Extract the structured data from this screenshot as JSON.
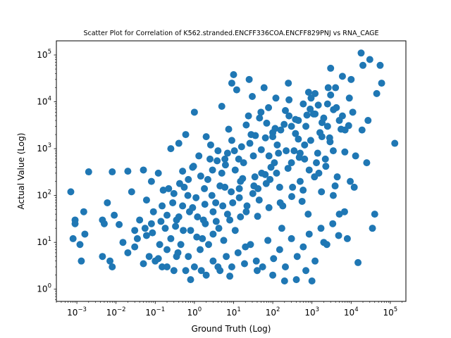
{
  "chart_data": {
    "type": "scatter",
    "title": "Scatter Plot for Correlation of K562.stranded.ENCFF336COA.ENCFF829PNJ vs RNA_CAGE",
    "xlabel": "Ground Truth (Log)",
    "ylabel": "Actual Value (Log)",
    "xscale": "log",
    "yscale": "log",
    "xlim": [
      0.0003,
      250000
    ],
    "ylim": [
      0.55,
      200000
    ],
    "x_ticks": [
      {
        "base": "10",
        "exp": "−3",
        "value": 0.001
      },
      {
        "base": "10",
        "exp": "−2",
        "value": 0.01
      },
      {
        "base": "10",
        "exp": "−1",
        "value": 0.1
      },
      {
        "base": "10",
        "exp": "0",
        "value": 1
      },
      {
        "base": "10",
        "exp": "1",
        "value": 10
      },
      {
        "base": "10",
        "exp": "2",
        "value": 100
      },
      {
        "base": "10",
        "exp": "3",
        "value": 1000
      },
      {
        "base": "10",
        "exp": "4",
        "value": 10000
      },
      {
        "base": "10",
        "exp": "5",
        "value": 100000
      }
    ],
    "y_ticks": [
      {
        "base": "10",
        "exp": "0",
        "value": 1
      },
      {
        "base": "10",
        "exp": "1",
        "value": 10
      },
      {
        "base": "10",
        "exp": "2",
        "value": 100
      },
      {
        "base": "10",
        "exp": "3",
        "value": 1000
      },
      {
        "base": "10",
        "exp": "4",
        "value": 10000
      },
      {
        "base": "10",
        "exp": "5",
        "value": 100000
      }
    ],
    "grid": false,
    "marker_color": "#1f77b4",
    "points": [
      [
        0.0007,
        120
      ],
      [
        0.0008,
        12
      ],
      [
        0.0009,
        30
      ],
      [
        0.0009,
        25
      ],
      [
        0.0012,
        9
      ],
      [
        0.0013,
        4
      ],
      [
        0.0015,
        45
      ],
      [
        0.0016,
        15
      ],
      [
        0.002,
        320
      ],
      [
        0.0045,
        5
      ],
      [
        0.0045,
        30
      ],
      [
        0.005,
        25
      ],
      [
        0.006,
        70
      ],
      [
        0.007,
        4
      ],
      [
        0.008,
        3
      ],
      [
        0.008,
        320
      ],
      [
        0.009,
        38
      ],
      [
        0.012,
        24
      ],
      [
        0.015,
        10
      ],
      [
        0.02,
        330
      ],
      [
        0.025,
        120
      ],
      [
        0.03,
        18
      ],
      [
        0.04,
        30
      ],
      [
        0.05,
        350
      ],
      [
        0.06,
        80
      ],
      [
        0.07,
        5
      ],
      [
        0.08,
        200
      ],
      [
        0.1,
        4
      ],
      [
        0.12,
        300
      ],
      [
        0.15,
        3
      ],
      [
        0.2,
        7
      ],
      [
        0.25,
        1000
      ],
      [
        0.3,
        2.5
      ],
      [
        0.35,
        30
      ],
      [
        0.4,
        1300
      ],
      [
        0.5,
        60
      ],
      [
        0.6,
        2000
      ],
      [
        0.7,
        5
      ],
      [
        0.8,
        1.6
      ],
      [
        0.9,
        400
      ],
      [
        1.0,
        6000
      ],
      [
        1.5,
        2.5
      ],
      [
        2,
        1800
      ],
      [
        3,
        15
      ],
      [
        4,
        3
      ],
      [
        5,
        8000
      ],
      [
        6,
        600
      ],
      [
        8,
        1.9
      ],
      [
        9,
        25000
      ],
      [
        10,
        38000
      ],
      [
        12,
        18000
      ],
      [
        15,
        200
      ],
      [
        20,
        8
      ],
      [
        25,
        30000
      ],
      [
        30,
        13000
      ],
      [
        40,
        2.5
      ],
      [
        50,
        6000
      ],
      [
        60,
        20000
      ],
      [
        80,
        700
      ],
      [
        100,
        2
      ],
      [
        120,
        12000
      ],
      [
        150,
        150
      ],
      [
        200,
        1.5
      ],
      [
        250,
        25000
      ],
      [
        300,
        3000
      ],
      [
        400,
        1.6
      ],
      [
        500,
        800
      ],
      [
        600,
        9000
      ],
      [
        700,
        2.5
      ],
      [
        800,
        40
      ],
      [
        1000,
        1.5
      ],
      [
        1200,
        15000
      ],
      [
        1500,
        300
      ],
      [
        2000,
        10
      ],
      [
        2500,
        3000
      ],
      [
        3000,
        52000
      ],
      [
        3500,
        100
      ],
      [
        4000,
        20000
      ],
      [
        5000,
        40
      ],
      [
        6000,
        35000
      ],
      [
        8000,
        12
      ],
      [
        10000,
        30000
      ],
      [
        12000,
        150
      ],
      [
        15000,
        3.7
      ],
      [
        18000,
        110000
      ],
      [
        20000,
        60000
      ],
      [
        25000,
        500
      ],
      [
        30000,
        80000
      ],
      [
        35000,
        20
      ],
      [
        40000,
        40
      ],
      [
        45000,
        15000
      ],
      [
        55000,
        60000
      ],
      [
        60000,
        25000
      ],
      [
        130000,
        1300
      ],
      [
        0.03,
        8
      ],
      [
        0.06,
        14
      ],
      [
        0.09,
        45
      ],
      [
        0.18,
        20
      ],
      [
        0.3,
        110
      ],
      [
        0.45,
        9
      ],
      [
        0.7,
        220
      ],
      [
        1.2,
        35
      ],
      [
        1.8,
        140
      ],
      [
        2.5,
        600
      ],
      [
        3.5,
        70
      ],
      [
        5,
        300
      ],
      [
        7,
        40
      ],
      [
        9,
        1500
      ],
      [
        14,
        90
      ],
      [
        18,
        500
      ],
      [
        28,
        2000
      ],
      [
        35,
        250
      ],
      [
        45,
        80
      ],
      [
        70,
        3500
      ],
      [
        90,
        400
      ],
      [
        130,
        1200
      ],
      [
        180,
        60
      ],
      [
        260,
        5000
      ],
      [
        350,
        900
      ],
      [
        500,
        200
      ],
      [
        700,
        3000
      ],
      [
        900,
        7000
      ],
      [
        1300,
        500
      ],
      [
        1800,
        1800
      ],
      [
        2500,
        9000
      ],
      [
        3500,
        900
      ],
      [
        5000,
        4000
      ],
      [
        7000,
        2500
      ],
      [
        9000,
        12000
      ],
      [
        11000,
        6000
      ],
      [
        0.15,
        60
      ],
      [
        0.25,
        12
      ],
      [
        0.4,
        35
      ],
      [
        0.55,
        150
      ],
      [
        0.8,
        18
      ],
      [
        1.1,
        90
      ],
      [
        1.6,
        12
      ],
      [
        2.2,
        220
      ],
      [
        3,
        45
      ],
      [
        4,
        900
      ],
      [
        6,
        150
      ],
      [
        8,
        30
      ],
      [
        11,
        350
      ],
      [
        16,
        1100
      ],
      [
        22,
        60
      ],
      [
        32,
        700
      ],
      [
        42,
        140
      ],
      [
        65,
        1700
      ],
      [
        85,
        220
      ],
      [
        110,
        500
      ],
      [
        160,
        2500
      ],
      [
        220,
        900
      ],
      [
        320,
        150
      ],
      [
        450,
        4000
      ],
      [
        650,
        1200
      ],
      [
        850,
        350
      ],
      [
        1100,
        5500
      ],
      [
        1600,
        2200
      ],
      [
        2200,
        600
      ],
      [
        3000,
        14000
      ],
      [
        0.05,
        3.5
      ],
      [
        0.12,
        4.5
      ],
      [
        0.2,
        3
      ],
      [
        0.35,
        5
      ],
      [
        0.6,
        2.5
      ],
      [
        1,
        3
      ],
      [
        1.4,
        7
      ],
      [
        2,
        2
      ],
      [
        3,
        4
      ],
      [
        4.5,
        2.5
      ],
      [
        6.5,
        5
      ],
      [
        9,
        3
      ],
      [
        13,
        6
      ],
      [
        19,
        3.5
      ],
      [
        27,
        9
      ],
      [
        38,
        4
      ],
      [
        55,
        3
      ],
      [
        75,
        11
      ],
      [
        105,
        4.5
      ],
      [
        150,
        7
      ],
      [
        210,
        3
      ],
      [
        300,
        12
      ],
      [
        420,
        5
      ],
      [
        600,
        8
      ],
      [
        850,
        15
      ],
      [
        1200,
        4
      ],
      [
        1700,
        20
      ],
      [
        2400,
        9
      ],
      [
        3400,
        25
      ],
      [
        4800,
        14
      ],
      [
        6800,
        45
      ],
      [
        9500,
        200
      ],
      [
        13000,
        700
      ],
      [
        19000,
        2500
      ],
      [
        27000,
        4000
      ],
      [
        0.08,
        25
      ],
      [
        0.14,
        28
      ],
      [
        0.22,
        140
      ],
      [
        0.33,
        22
      ],
      [
        0.5,
        330
      ],
      [
        0.75,
        45
      ],
      [
        1.3,
        700
      ],
      [
        1.9,
        25
      ],
      [
        2.8,
        100
      ],
      [
        4.2,
        20
      ],
      [
        6.2,
        450
      ],
      [
        9.5,
        70
      ],
      [
        14,
        140
      ],
      [
        21,
        3200
      ],
      [
        31,
        110
      ],
      [
        46,
        4500
      ],
      [
        68,
        180
      ],
      [
        100,
        2200
      ],
      [
        140,
        800
      ],
      [
        210,
        6500
      ],
      [
        300,
        500
      ],
      [
        450,
        1600
      ],
      [
        650,
        600
      ],
      [
        950,
        12000
      ],
      [
        1400,
        800
      ],
      [
        2000,
        4500
      ],
      [
        2900,
        1400
      ],
      [
        4200,
        7500
      ],
      [
        6000,
        5000
      ],
      [
        0.02,
        6
      ],
      [
        0.035,
        12
      ],
      [
        0.055,
        20
      ],
      [
        0.085,
        16
      ],
      [
        0.13,
        9
      ],
      [
        0.2,
        38
      ],
      [
        0.28,
        70
      ],
      [
        0.38,
        6
      ],
      [
        0.52,
        18
      ],
      [
        0.68,
        100
      ],
      [
        0.9,
        55
      ],
      [
        1.15,
        13
      ],
      [
        1.45,
        260
      ],
      [
        1.85,
        65
      ],
      [
        2.3,
        9
      ],
      [
        2.9,
        350
      ],
      [
        3.6,
        28
      ],
      [
        4.5,
        160
      ],
      [
        5.6,
        11
      ],
      [
        7,
        800
      ],
      [
        8.7,
        120
      ],
      [
        11,
        18
      ],
      [
        13.5,
        600
      ],
      [
        17,
        230
      ],
      [
        21,
        45
      ],
      [
        26,
        1300
      ],
      [
        33,
        160
      ],
      [
        41,
        36
      ],
      [
        51,
        950
      ],
      [
        64,
        280
      ],
      [
        80,
        55
      ],
      [
        100,
        1800
      ],
      [
        125,
        300
      ],
      [
        155,
        70
      ],
      [
        195,
        3300
      ],
      [
        245,
        380
      ],
      [
        305,
        95
      ],
      [
        380,
        2100
      ],
      [
        475,
        650
      ],
      [
        595,
        130
      ],
      [
        745,
        5200
      ],
      [
        930,
        1500
      ],
      [
        1160,
        250
      ],
      [
        1450,
        8500
      ],
      [
        1810,
        3600
      ],
      [
        2260,
        420
      ],
      [
        2830,
        1700
      ],
      [
        3540,
        6800
      ],
      [
        4420,
        250
      ],
      [
        5530,
        2600
      ],
      [
        6910,
        850
      ],
      [
        8640,
        3100
      ],
      [
        0.16,
        130
      ],
      [
        0.42,
        180
      ],
      [
        0.95,
        420
      ],
      [
        1.7,
        30
      ],
      [
        2.6,
        1200
      ],
      [
        3.8,
        550
      ],
      [
        5.3,
        60
      ],
      [
        7.5,
        2600
      ],
      [
        10.5,
        900
      ],
      [
        15,
        35
      ],
      [
        24,
        5000
      ],
      [
        36,
        1900
      ],
      [
        52,
        300
      ],
      [
        78,
        7500
      ],
      [
        115,
        2700
      ],
      [
        170,
        20
      ],
      [
        260,
        11000
      ],
      [
        380,
        4200
      ],
      [
        560,
        75
      ],
      [
        820,
        16000
      ],
      [
        1200,
        5500
      ],
      [
        1750,
        120
      ],
      [
        2600,
        20000
      ],
      [
        3900,
        160
      ]
    ]
  }
}
